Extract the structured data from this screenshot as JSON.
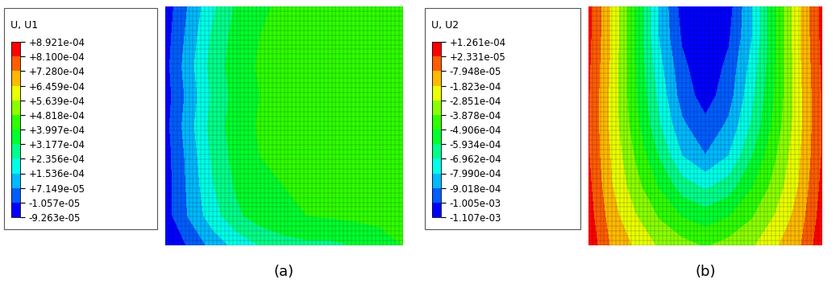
{
  "chart_data": [
    {
      "type": "contour",
      "title": "U, U1",
      "caption": "(a)",
      "tick_labels": false,
      "colorbar_lim": [
        -9.263e-05,
        0.0008921
      ],
      "colorbar_ticks": [
        {
          "value": 0.0008921,
          "label": "+8.921e-04"
        },
        {
          "value": 0.00081,
          "label": "+8.100e-04"
        },
        {
          "value": 0.000728,
          "label": "+7.280e-04"
        },
        {
          "value": 0.0006459,
          "label": "+6.459e-04"
        },
        {
          "value": 0.0005639,
          "label": "+5.639e-04"
        },
        {
          "value": 0.0004818,
          "label": "+4.818e-04"
        },
        {
          "value": 0.0003997,
          "label": "+3.997e-04"
        },
        {
          "value": 0.0003177,
          "label": "+3.177e-04"
        },
        {
          "value": 0.0002356,
          "label": "+2.356e-04"
        },
        {
          "value": 0.0001536,
          "label": "+1.536e-04"
        },
        {
          "value": 7.149e-05,
          "label": "+7.149e-05"
        },
        {
          "value": -1.057e-05,
          "label": "-1.057e-05"
        },
        {
          "value": -9.263e-05,
          "label": "-9.263e-05"
        }
      ],
      "colors": [
        "#0000FF",
        "#005DFF",
        "#00B9FF",
        "#00FFE8",
        "#00FF8B",
        "#00FF2E",
        "#2EFF00",
        "#8AFF00",
        "#EAFF00",
        "#FFB900",
        "#FF5D00",
        "#FF0000"
      ],
      "cells": [
        [
          -6e-05,
          8e-05,
          0.00022,
          0.00033,
          0.00039,
          0.00041,
          0.00042,
          0.00043,
          0.00044,
          0.00045,
          0.00046
        ],
        [
          -5e-05,
          0.0001,
          0.00025,
          0.00035,
          0.0004,
          0.00042,
          0.00043,
          0.00044,
          0.00045,
          0.00046,
          0.00047
        ],
        [
          -4e-05,
          0.00012,
          0.00027,
          0.00036,
          0.00041,
          0.00043,
          0.00044,
          0.00045,
          0.00046,
          0.00046,
          0.00047
        ],
        [
          -5e-05,
          0.0001,
          0.00025,
          0.00035,
          0.0004,
          0.00042,
          0.00044,
          0.00045,
          0.00045,
          0.00046,
          0.00047
        ],
        [
          -4e-05,
          0.00012,
          0.00027,
          0.00036,
          0.00041,
          0.00043,
          0.00044,
          0.00045,
          0.00046,
          0.00046,
          0.00046
        ],
        [
          -5e-05,
          0.0001,
          0.00025,
          0.00035,
          0.0004,
          0.00042,
          0.00043,
          0.00044,
          0.00045,
          0.00045,
          0.00046
        ],
        [
          -5e-05,
          9e-05,
          0.00023,
          0.00033,
          0.00038,
          0.0004,
          0.00041,
          0.00042,
          0.00043,
          0.00044,
          0.00045
        ],
        [
          -5e-05,
          8e-05,
          0.0002,
          0.0003,
          0.00036,
          0.00039,
          0.0004,
          0.00041,
          0.00042,
          0.00043,
          0.00044
        ],
        [
          -9e-05,
          0.0,
          0.0001,
          0.00018,
          0.00024,
          0.00028,
          0.0003,
          0.0003,
          0.00032,
          0.00035,
          0.0004
        ]
      ]
    },
    {
      "type": "contour",
      "title": "U, U2",
      "caption": "(b)",
      "tick_labels": false,
      "colorbar_lim": [
        -0.001107,
        0.0001261
      ],
      "colorbar_ticks": [
        {
          "value": 0.0001261,
          "label": "+1.261e-04"
        },
        {
          "value": 2.331e-05,
          "label": "+2.331e-05"
        },
        {
          "value": -7.948e-05,
          "label": "-7.948e-05"
        },
        {
          "value": -0.0001823,
          "label": "-1.823e-04"
        },
        {
          "value": -0.0002851,
          "label": "-2.851e-04"
        },
        {
          "value": -0.0003878,
          "label": "-3.878e-04"
        },
        {
          "value": -0.0004906,
          "label": "-4.906e-04"
        },
        {
          "value": -0.0005934,
          "label": "-5.934e-04"
        },
        {
          "value": -0.0006962,
          "label": "-6.962e-04"
        },
        {
          "value": -0.000799,
          "label": "-7.990e-04"
        },
        {
          "value": -0.0009018,
          "label": "-9.018e-04"
        },
        {
          "value": -0.001005,
          "label": "-1.005e-03"
        },
        {
          "value": -0.001107,
          "label": "-1.107e-03"
        }
      ],
      "colors": [
        "#0000FF",
        "#005DFF",
        "#00B9FF",
        "#00FFE8",
        "#00FF8B",
        "#00FF2E",
        "#2EFF00",
        "#8AFF00",
        "#EAFF00",
        "#FFB900",
        "#FF5D00",
        "#FF0000"
      ],
      "cells": [
        [
          5e-05,
          -0.0002,
          -0.0005,
          -0.0008,
          -0.00105,
          -0.0011,
          -0.00105,
          -0.0008,
          -0.0005,
          -0.0002,
          5e-05
        ],
        [
          5e-05,
          -0.0002,
          -0.0005,
          -0.0008,
          -0.00102,
          -0.0011,
          -0.00102,
          -0.0008,
          -0.0005,
          -0.0002,
          5e-05
        ],
        [
          4e-05,
          -0.00021,
          -0.00049,
          -0.00076,
          -0.00098,
          -0.00108,
          -0.00098,
          -0.00076,
          -0.00049,
          -0.00021,
          4e-05
        ],
        [
          3e-05,
          -0.00022,
          -0.00048,
          -0.00072,
          -0.00095,
          -0.00105,
          -0.00095,
          -0.00072,
          -0.00048,
          -0.00022,
          3e-05
        ],
        [
          3e-05,
          -0.00022,
          -0.00045,
          -0.00068,
          -0.00088,
          -0.00098,
          -0.00088,
          -0.00068,
          -0.00045,
          -0.00022,
          3e-05
        ],
        [
          3e-05,
          -0.0002,
          -0.0004,
          -0.0006,
          -0.0008,
          -0.0009,
          -0.0008,
          -0.0006,
          -0.0004,
          -0.0002,
          3e-05
        ],
        [
          5e-05,
          -0.00018,
          -0.00035,
          -0.0005,
          -0.00065,
          -0.00072,
          -0.00065,
          -0.0005,
          -0.00035,
          -0.00018,
          5e-05
        ],
        [
          7e-05,
          -0.00014,
          -0.00028,
          -0.0004,
          -0.0005,
          -0.00055,
          -0.0005,
          -0.0004,
          -0.00028,
          -0.00014,
          7e-05
        ],
        [
          0.0001,
          -0.0001,
          -0.0002,
          -0.0003,
          -0.00035,
          -0.0004,
          -0.00035,
          -0.0003,
          -0.0002,
          -0.0001,
          0.0001
        ]
      ]
    }
  ]
}
